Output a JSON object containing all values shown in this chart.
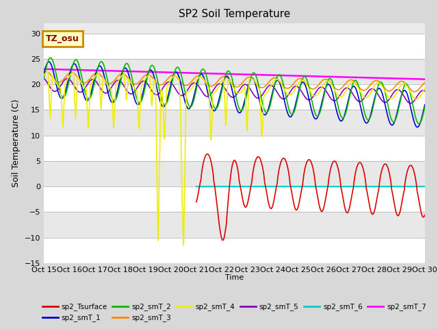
{
  "title": "SP2 Soil Temperature",
  "xlabel": "Time",
  "ylabel": "Soil Temperature (C)",
  "ylim": [
    -15,
    32
  ],
  "xlim": [
    0,
    360
  ],
  "xtick_labels": [
    "Oct 15",
    "Oct 16",
    "Oct 17",
    "Oct 18",
    "Oct 19",
    "Oct 20",
    "Oct 21",
    "Oct 22",
    "Oct 23",
    "Oct 24",
    "Oct 25",
    "Oct 26",
    "Oct 27",
    "Oct 28",
    "Oct 29",
    "Oct 30"
  ],
  "yticks": [
    -15,
    -10,
    -5,
    0,
    5,
    10,
    15,
    20,
    25,
    30
  ],
  "annotation_text": "TZ_osu",
  "annotation_color": "#8B0000",
  "annotation_bg": "#FFFFC0",
  "annotation_border": "#CC8800",
  "series": [
    {
      "name": "sp2_Tsurface",
      "color": "#DD0000",
      "lw": 1.2
    },
    {
      "name": "sp2_smT_1",
      "color": "#0000CC",
      "lw": 1.2
    },
    {
      "name": "sp2_smT_2",
      "color": "#00BB00",
      "lw": 1.2
    },
    {
      "name": "sp2_smT_3",
      "color": "#FF8800",
      "lw": 1.2
    },
    {
      "name": "sp2_smT_4",
      "color": "#EEEE00",
      "lw": 1.2
    },
    {
      "name": "sp2_smT_5",
      "color": "#8800BB",
      "lw": 1.2
    },
    {
      "name": "sp2_smT_6",
      "color": "#00CCCC",
      "lw": 1.5
    },
    {
      "name": "sp2_smT_7",
      "color": "#FF00FF",
      "lw": 1.8
    }
  ],
  "bg_color": "#D8D8D8",
  "plot_bg": "#EBEBEB",
  "grid_color": "#FFFFFF",
  "stripe_color": "#E0E0E0"
}
